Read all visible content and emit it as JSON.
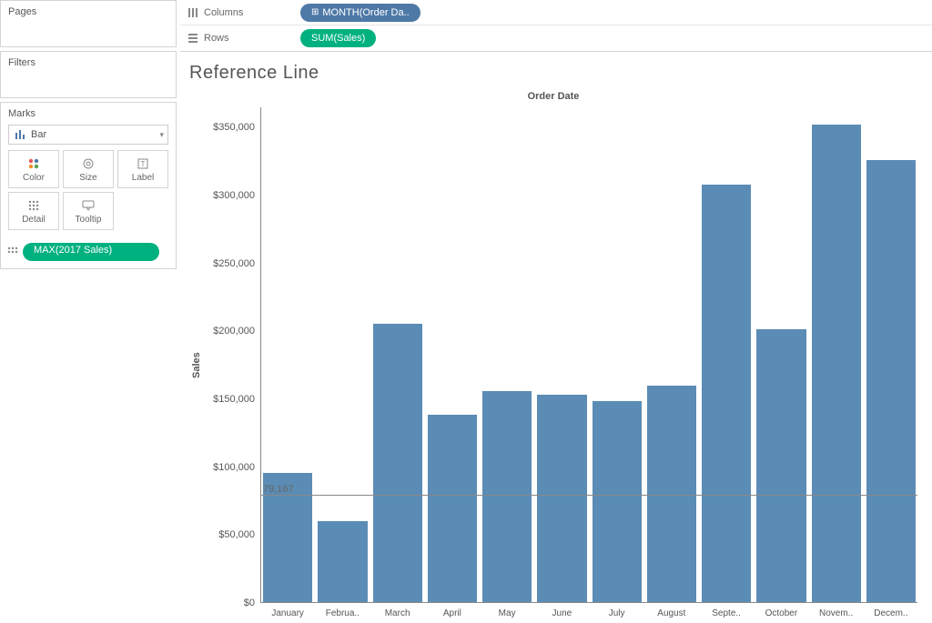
{
  "panels": {
    "pages": "Pages",
    "filters": "Filters",
    "marks": "Marks"
  },
  "marks_card": {
    "select_value": "Bar",
    "tiles": [
      {
        "label": "Color",
        "icon": "color"
      },
      {
        "label": "Size",
        "icon": "size"
      },
      {
        "label": "Label",
        "icon": "label"
      },
      {
        "label": "Detail",
        "icon": "detail"
      },
      {
        "label": "Tooltip",
        "icon": "tooltip"
      }
    ],
    "pill_label": "MAX(2017 Sales)",
    "pill_color": "#00b180"
  },
  "shelves": {
    "columns_label": "Columns",
    "rows_label": "Rows",
    "columns_pill": "MONTH(Order Da..",
    "columns_pill_color": "#4e79a7",
    "rows_pill": "SUM(Sales)",
    "rows_pill_color": "#00b180"
  },
  "chart": {
    "title": "Reference Line",
    "x_axis_title": "Order Date",
    "y_axis_title": "Sales",
    "type": "bar",
    "bar_color": "#5b8cb5",
    "background_color": "#ffffff",
    "ylim": [
      0,
      365000
    ],
    "y_ticks": [
      {
        "v": 0,
        "label": "$0"
      },
      {
        "v": 50000,
        "label": "$50,000"
      },
      {
        "v": 100000,
        "label": "$100,000"
      },
      {
        "v": 150000,
        "label": "$150,000"
      },
      {
        "v": 200000,
        "label": "$200,000"
      },
      {
        "v": 250000,
        "label": "$250,000"
      },
      {
        "v": 300000,
        "label": "$300,000"
      },
      {
        "v": 350000,
        "label": "$350,000"
      }
    ],
    "reference_line": {
      "value": 79167,
      "label": "79,167",
      "color": "#888888"
    },
    "categories": [
      "January",
      "Februa..",
      "March",
      "April",
      "May",
      "June",
      "July",
      "August",
      "Septe..",
      "October",
      "Novem..",
      "Decem.."
    ],
    "values": [
      95000,
      60000,
      205000,
      138000,
      156000,
      153000,
      148000,
      160000,
      308000,
      201000,
      352000,
      326000
    ]
  }
}
